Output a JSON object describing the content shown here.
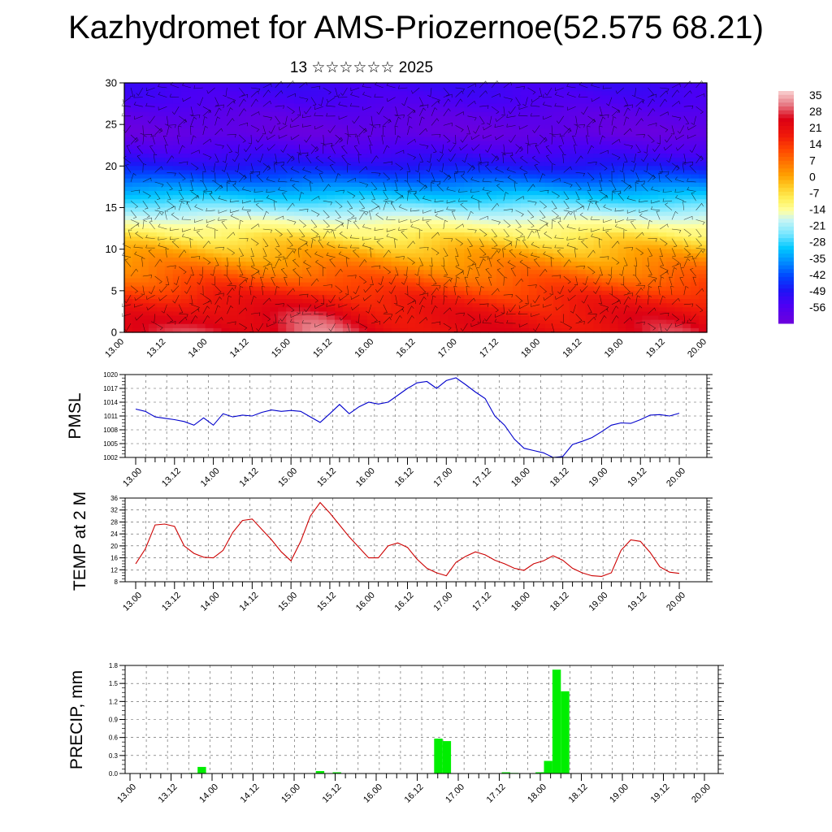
{
  "title": "Kazhydromet for AMS-Priozernoe(52.575 68.21)",
  "subtitle": "13 ☆☆☆☆☆☆ 2025",
  "time_ticks": [
    "13.00",
    "13.12",
    "14.00",
    "14.12",
    "15.00",
    "15.12",
    "16.00",
    "16.12",
    "17.00",
    "17.12",
    "18.00",
    "18.12",
    "19.00",
    "19.12",
    "20.00"
  ],
  "colors": {
    "pmsl_line": "#0000cc",
    "temp_line": "#cc0000",
    "precip_bar": "#00ee00"
  },
  "chart_data": [
    {
      "type": "heatmap",
      "yticks": [
        "0",
        "5",
        "10",
        "15",
        "20",
        "25",
        "30"
      ],
      "ylim": [
        0,
        30
      ],
      "colorbar": {
        "labels": [
          "35",
          "28",
          "21",
          "14",
          "7",
          "0",
          "-7",
          "-14",
          "-21",
          "-28",
          "-35",
          "-42",
          "-49",
          "-56"
        ],
        "range": [
          -60,
          39
        ]
      },
      "description_levels": {
        "level": [
          0,
          2,
          4,
          6,
          8,
          10,
          12,
          14,
          16,
          18,
          20,
          22,
          24,
          26,
          28,
          30
        ],
        "value": [
          24,
          22,
          18,
          12,
          6,
          0,
          -8,
          -16,
          -26,
          -36,
          -46,
          -52,
          -58,
          -56,
          -52,
          -50
        ]
      },
      "warm_spots": [
        {
          "time": 1.0,
          "value": 30
        },
        {
          "time": 2.3,
          "value": 32
        },
        {
          "time": 6.6,
          "value": 28
        }
      ]
    },
    {
      "type": "line",
      "ylabel": "PMSL",
      "yticks": [
        "1002",
        "1005",
        "1008",
        "1011",
        "1014",
        "1017",
        "1020"
      ],
      "ylim": [
        1002,
        1020
      ],
      "series": [
        {
          "values": [
            1012.5,
            1012,
            1010.8,
            1010.5,
            1010.2,
            1009.8,
            1009,
            1010.6,
            1009,
            1011.5,
            1010.8,
            1011.2,
            1011,
            1011.8,
            1012.3,
            1012,
            1012.2,
            1012,
            1010.8,
            1009.6,
            1011.5,
            1013.5,
            1011.5,
            1013,
            1014,
            1013.6,
            1014,
            1015.5,
            1017,
            1018.2,
            1018.5,
            1017,
            1018.7,
            1019.3,
            1017.8,
            1016.2,
            1014.8,
            1011,
            1009,
            1006,
            1004,
            1003.5,
            1003,
            1002,
            1002.2,
            1004.8,
            1005.5,
            1006.3,
            1007.6,
            1009,
            1009.5,
            1009.4,
            1010.2,
            1011.2,
            1011.3,
            1011,
            1011.6
          ]
        }
      ]
    },
    {
      "type": "line",
      "ylabel": "TEMP at 2 M",
      "yticks": [
        "8",
        "12",
        "16",
        "20",
        "24",
        "28",
        "32",
        "36"
      ],
      "ylim": [
        8,
        36
      ],
      "series": [
        {
          "values": [
            14,
            19,
            27,
            27.3,
            26.5,
            20,
            17.5,
            16.2,
            16,
            18.5,
            24.5,
            28.5,
            29,
            25.5,
            22,
            18,
            15,
            21.5,
            30,
            34.5,
            31,
            27,
            23,
            19.5,
            16,
            16,
            20,
            21,
            19.5,
            15.5,
            12.5,
            11,
            10,
            14.5,
            16.5,
            18,
            17,
            15.2,
            14,
            12.5,
            11.8,
            14,
            15,
            16.7,
            15.2,
            12.5,
            11,
            10,
            9.8,
            11,
            18.5,
            22,
            21.5,
            17.8,
            13,
            11.2,
            10.8
          ]
        }
      ]
    },
    {
      "type": "bar",
      "ylabel": "PRECIP, mm",
      "yticks": [
        "0.0",
        "0.3",
        "0.6",
        "0.9",
        "1.2",
        "1.5",
        "1.8"
      ],
      "ylim": [
        0,
        1.8
      ],
      "values": [
        0,
        0,
        0,
        0,
        0,
        0,
        0,
        0.01,
        0.11,
        0,
        0,
        0,
        0,
        0,
        0,
        0,
        0,
        0,
        0,
        0,
        0,
        0,
        0.04,
        0,
        0.02,
        0,
        0,
        0,
        0,
        0,
        0,
        0,
        0,
        0,
        0,
        0,
        0.58,
        0.54,
        0,
        0,
        0,
        0,
        0,
        0,
        0.02,
        0.01,
        0,
        0,
        0.02,
        0.21,
        1.73,
        1.37,
        0,
        0,
        0,
        0,
        0,
        0,
        0,
        0,
        0,
        0,
        0,
        0,
        0,
        0,
        0,
        0,
        0
      ]
    }
  ]
}
